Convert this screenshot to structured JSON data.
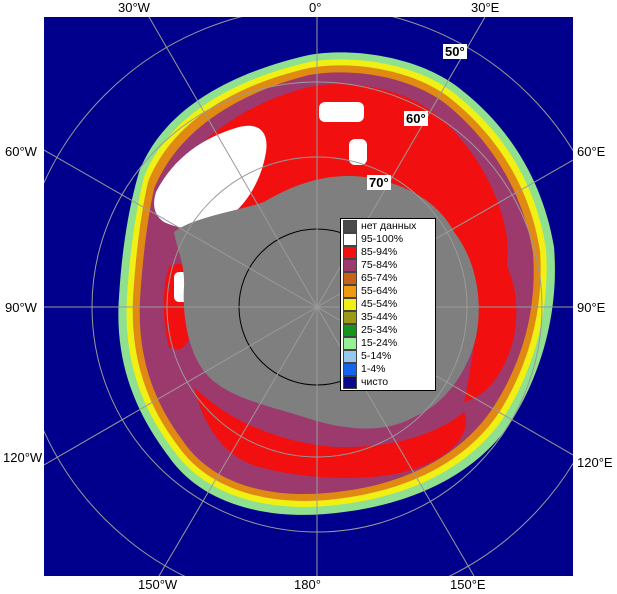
{
  "map": {
    "longitude_labels": {
      "top": [
        "30°W",
        "0°",
        "30°E"
      ],
      "left": [
        "60°W",
        "90°W",
        "120°W"
      ],
      "right": [
        "60°E",
        "90°E",
        "120°E"
      ],
      "bottom": [
        "150°W",
        "180°",
        "150°E"
      ]
    },
    "latitude_labels": [
      "50°",
      "60°",
      "70°"
    ]
  },
  "legend": {
    "items": [
      {
        "label": "нет данных",
        "color": "#4a4a4a"
      },
      {
        "label": "95-100%",
        "color": "#ffffff"
      },
      {
        "label": "85-94%",
        "color": "#f20f0f"
      },
      {
        "label": "75-84%",
        "color": "#9c3a6e"
      },
      {
        "label": "65-74%",
        "color": "#c8641a"
      },
      {
        "label": "55-64%",
        "color": "#f09a14"
      },
      {
        "label": "45-54%",
        "color": "#f0f014"
      },
      {
        "label": "35-44%",
        "color": "#9a9a14"
      },
      {
        "label": "25-34%",
        "color": "#14961e"
      },
      {
        "label": "15-24%",
        "color": "#96f096"
      },
      {
        "label": "5-14%",
        "color": "#96c8f0"
      },
      {
        "label": "1-4%",
        "color": "#1464f0"
      },
      {
        "label": "чисто",
        "color": "#0a0a8c"
      }
    ]
  },
  "colors": {
    "ocean": "#00008c",
    "land": "#7f7f7f",
    "grid": "#9a9a9a",
    "ice_shelf": "#d9d9d9"
  }
}
